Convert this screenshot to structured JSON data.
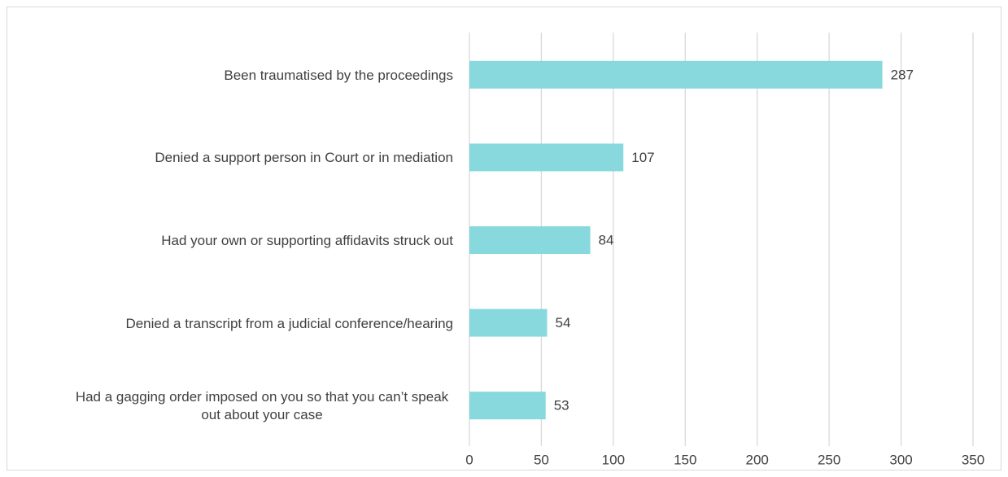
{
  "chart_data": {
    "type": "bar",
    "orientation": "horizontal",
    "categories": [
      "Been traumatised by the proceedings",
      "Denied a support person in Court or in mediation",
      "Had your own or supporting affidavits struck out",
      "Denied a transcript from a judicial conference/hearing",
      "Had a gagging order imposed on you so that you can’t speak out about your case"
    ],
    "values": [
      287,
      107,
      84,
      54,
      53
    ],
    "color": "#88d9dd",
    "xlim": [
      0,
      350
    ],
    "xticks": [
      0,
      50,
      100,
      150,
      200,
      250,
      300,
      350
    ],
    "grid": true
  }
}
